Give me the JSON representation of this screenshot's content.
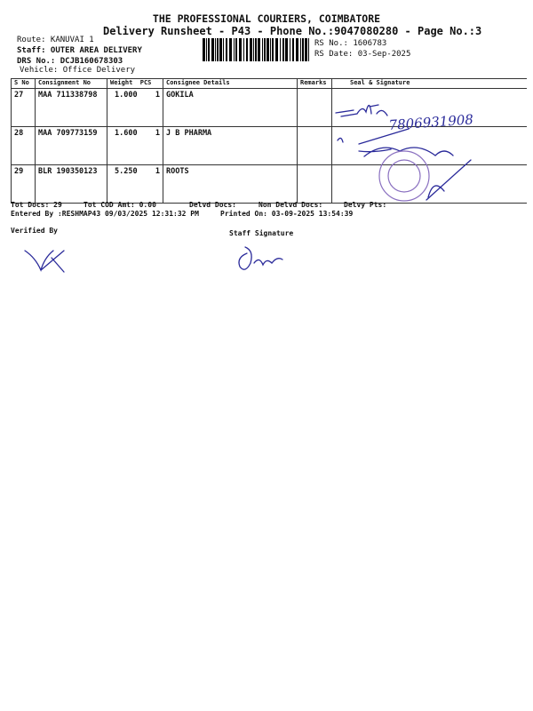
{
  "header": {
    "company": "THE PROFESSIONAL COURIERS, COIMBATORE",
    "subtitle": "Delivery Runsheet - P43 - Phone No.:9047080280 - Page No.:3",
    "route": "Route: KANUVAI 1",
    "staff": "Staff: OUTER AREA DELIVERY",
    "drs_no": "DRS No.: DCJB160678303",
    "vehicle": "Vehicle: Office Delivery",
    "rs_no": "RS No.: 1606783",
    "rs_date": "RS Date: 03-Sep-2025"
  },
  "table": {
    "columns": [
      "S No",
      "Consignment No",
      "Weight",
      "PCS",
      "Consignee Details",
      "Remarks",
      "Seal & Signature"
    ],
    "rows": [
      {
        "sno": "27",
        "consignment": "MAA 711338798",
        "weight": "1.000",
        "pcs": "1",
        "consignee": "GOKILA",
        "remarks": ""
      },
      {
        "sno": "28",
        "consignment": "MAA 709773159",
        "weight": "1.600",
        "pcs": "1",
        "consignee": "J B PHARMA",
        "remarks": ""
      },
      {
        "sno": "29",
        "consignment": "BLR 190350123",
        "weight": "5.250",
        "pcs": "1",
        "consignee": "ROOTS",
        "remarks": ""
      }
    ]
  },
  "footer": {
    "tot_docs": "Tot Docs:  29",
    "tot_cod": "Tot COD Amt:    0.00",
    "delvd_docs": "Delvd Docs:",
    "non_delvd_docs": "Non Delvd Docs:",
    "delvy_pts": "Delvy Pts:",
    "entered_by": "Entered By :RESHMAP43 09/03/2025 12:31:32 PM",
    "printed_on": "Printed On: 03-09-2025 13:54:39",
    "verified_by": "Verified By",
    "staff_signature": "Staff Signature"
  },
  "handwriting": {
    "phone_note": "7806931908"
  },
  "colors": {
    "ink": "#2a2a9a",
    "stamp": "#8a70c0"
  }
}
